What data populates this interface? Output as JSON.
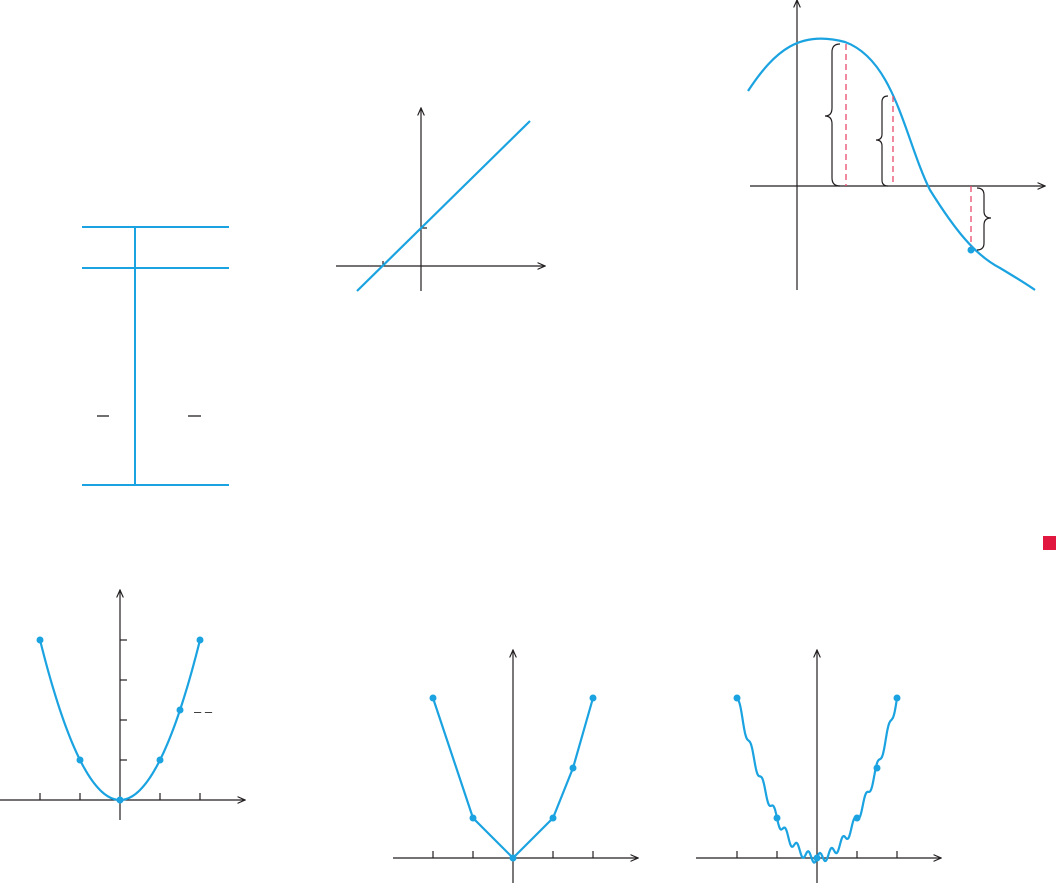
{
  "colors": {
    "curve": "#1aa3e0",
    "axis": "#231f20",
    "dash": "#e94a6a",
    "marker": "#e1173f"
  },
  "chart_data": [
    {
      "id": "value-table",
      "type": "table",
      "rows": 2,
      "columns": 2,
      "visible_text": [
        "–",
        "–"
      ]
    },
    {
      "id": "line-graph",
      "type": "line",
      "x": [
        -1,
        2.7
      ],
      "y": [
        -0.55,
        3.7
      ],
      "intercept_tick_y": 1
    },
    {
      "id": "wave-graph",
      "type": "line",
      "annotations": [
        "brace-1",
        "brace-2",
        "brace-3"
      ]
    },
    {
      "id": "parabola-graph",
      "type": "line",
      "x": [
        -2,
        -1,
        0,
        1,
        1.5,
        2
      ],
      "y": [
        4,
        1,
        0,
        1,
        2.25,
        4
      ],
      "xticks": [
        -2,
        -1,
        1,
        2
      ],
      "yticks": [
        1,
        2,
        3,
        4
      ],
      "grid": false,
      "inline_label": "– –"
    },
    {
      "id": "broken-line-graph",
      "type": "line",
      "x": [
        -2,
        -1,
        0,
        1,
        1.5,
        2
      ],
      "y": [
        4,
        1,
        0,
        1,
        2.25,
        4
      ],
      "xticks": [
        -2,
        -1,
        1,
        2
      ]
    },
    {
      "id": "wiggly-graph",
      "type": "line",
      "x": [
        -2,
        -1,
        0,
        1,
        1.5,
        2
      ],
      "y": [
        4,
        1,
        0,
        1,
        2.25,
        4
      ],
      "xticks": [
        -2,
        -1,
        1,
        2
      ]
    }
  ]
}
